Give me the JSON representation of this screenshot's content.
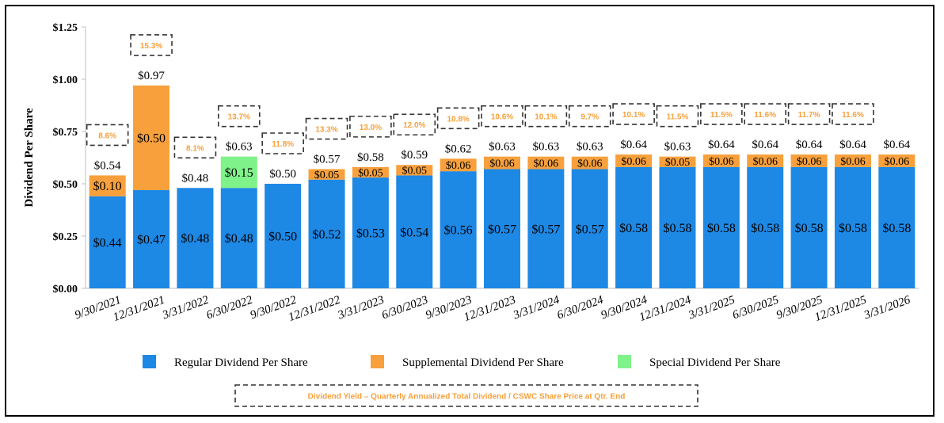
{
  "chart_data": {
    "type": "bar",
    "stacked": true,
    "ylabel": "Dividend Per Share",
    "ylim": [
      0,
      1.25
    ],
    "yticks": [
      0,
      0.25,
      0.5,
      0.75,
      1.0,
      1.25
    ],
    "ytick_labels": [
      "$0.00",
      "$0.25",
      "$0.50",
      "$0.75",
      "$1.00",
      "$1.25"
    ],
    "grid": false,
    "legend_position": "bottom",
    "categories": [
      "9/30/2021",
      "12/31/2021",
      "3/31/2022",
      "6/30/2022",
      "9/30/2022",
      "12/31/2022",
      "3/31/2023",
      "6/30/2023",
      "9/30/2023",
      "12/31/2023",
      "3/31/2024",
      "6/30/2024",
      "9/30/2024",
      "12/31/2024",
      "3/31/2025",
      "6/30/2025",
      "9/30/2025",
      "12/31/2025",
      "3/31/2026"
    ],
    "series": [
      {
        "name": "Regular Dividend Per Share",
        "color": "#1E88E5",
        "values": [
          0.44,
          0.47,
          0.48,
          0.48,
          0.5,
          0.52,
          0.53,
          0.54,
          0.56,
          0.57,
          0.57,
          0.57,
          0.58,
          0.58,
          0.58,
          0.58,
          0.58,
          0.58,
          0.58
        ],
        "labels": [
          "$0.44",
          "$0.47",
          "$0.48",
          "$0.48",
          "$0.50",
          "$0.52",
          "$0.53",
          "$0.54",
          "$0.56",
          "$0.57",
          "$0.57",
          "$0.57",
          "$0.58",
          "$0.58",
          "$0.58",
          "$0.58",
          "$0.58",
          "$0.58",
          "$0.58"
        ]
      },
      {
        "name": "Supplemental Dividend Per Share",
        "color": "#F7A03C",
        "values": [
          0.1,
          0.5,
          0,
          0,
          0,
          0.05,
          0.05,
          0.05,
          0.06,
          0.06,
          0.06,
          0.06,
          0.06,
          0.05,
          0.06,
          0.06,
          0.06,
          0.06,
          0.06
        ],
        "labels": [
          "$0.10",
          "$0.50",
          "",
          "",
          "",
          "$0.05",
          "$0.05",
          "$0.05",
          "$0.06",
          "$0.06",
          "$0.06",
          "$0.06",
          "$0.06",
          "$0.05",
          "$0.06",
          "$0.06",
          "$0.06",
          "$0.06",
          "$0.06"
        ]
      },
      {
        "name": "Special Dividend Per Share",
        "color": "#80F28A",
        "values": [
          0,
          0,
          0,
          0.15,
          0,
          0,
          0,
          0,
          0,
          0,
          0,
          0,
          0,
          0,
          0,
          0,
          0,
          0,
          0
        ],
        "labels": [
          "",
          "",
          "",
          "$0.15",
          "",
          "",
          "",
          "",
          "",
          "",
          "",
          "",
          "",
          "",
          "",
          "",
          "",
          "",
          ""
        ]
      }
    ],
    "totals": [
      0.54,
      0.97,
      0.48,
      0.63,
      0.5,
      0.57,
      0.58,
      0.59,
      0.62,
      0.63,
      0.63,
      0.63,
      0.64,
      0.63,
      0.64,
      0.64,
      0.64,
      0.64,
      0.64
    ],
    "total_labels": [
      "$0.54",
      "$0.97",
      "$0.48",
      "$0.63",
      "$0.50",
      "$0.57",
      "$0.58",
      "$0.59",
      "$0.62",
      "$0.63",
      "$0.63",
      "$0.63",
      "$0.64",
      "$0.63",
      "$0.64",
      "$0.64",
      "$0.64",
      "$0.64",
      "$0.64"
    ],
    "yields": [
      "8.6%",
      "15.3%",
      "8.1%",
      "13.7%",
      "11.8%",
      "13.3%",
      "13.0%",
      "12.0%",
      "10.8%",
      "10.6%",
      "10.1%",
      "9.7%",
      "10.1%",
      "11.5%",
      "11.5%",
      "11.6%",
      "11.7%",
      "11.6%",
      ""
    ],
    "yield_color": "#F7A03C",
    "yield_note": "Dividend Yield – Quarterly Annualized Total Dividend / CSWC Share Price at Qtr. End"
  }
}
